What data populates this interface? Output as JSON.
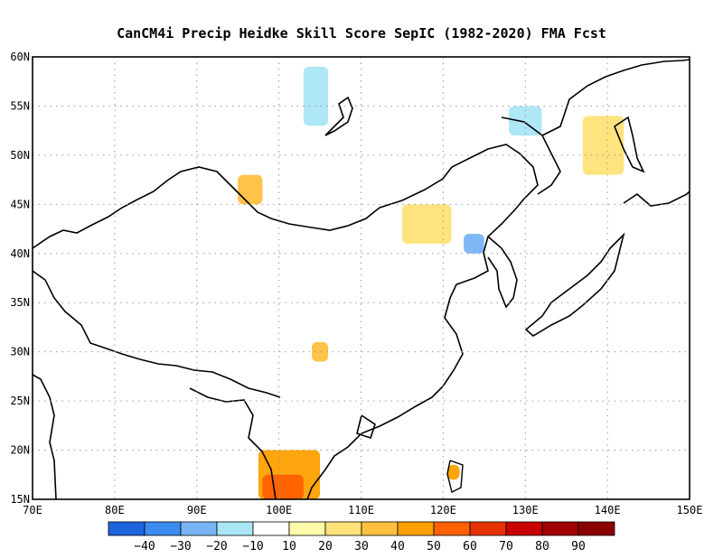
{
  "title": "CanCM4i Precip Heidke Skill Score SepIC (1982-2020) FMA Fcst",
  "map": {
    "lon_range": [
      70,
      150
    ],
    "lat_range": [
      15,
      60
    ],
    "lon_ticks": [
      {
        "value": 70,
        "label": "70E"
      },
      {
        "value": 80,
        "label": "80E"
      },
      {
        "value": 90,
        "label": "90E"
      },
      {
        "value": 100,
        "label": "100E"
      },
      {
        "value": 110,
        "label": "110E"
      },
      {
        "value": 120,
        "label": "120E"
      },
      {
        "value": 130,
        "label": "130E"
      },
      {
        "value": 140,
        "label": "140E"
      },
      {
        "value": 150,
        "label": "150E"
      }
    ],
    "lat_ticks": [
      {
        "value": 15,
        "label": "15N"
      },
      {
        "value": 20,
        "label": "20N"
      },
      {
        "value": 25,
        "label": "25N"
      },
      {
        "value": 30,
        "label": "30N"
      },
      {
        "value": 35,
        "label": "35N"
      },
      {
        "value": 40,
        "label": "40N"
      },
      {
        "value": 45,
        "label": "45N"
      },
      {
        "value": 50,
        "label": "50N"
      },
      {
        "value": 55,
        "label": "55N"
      },
      {
        "value": 60,
        "label": "60N"
      }
    ],
    "grid": "dotted"
  },
  "colorbar": {
    "levels": [
      -40,
      -30,
      -20,
      -10,
      10,
      20,
      30,
      40,
      50,
      60,
      70,
      80,
      90
    ],
    "labels": [
      "-40",
      "-30",
      "-20",
      "-10",
      "10",
      "20",
      "30",
      "40",
      "50",
      "60",
      "70",
      "80",
      "90"
    ],
    "colors": [
      "#1e64dc",
      "#3c8cf0",
      "#78b4f5",
      "#aae6f5",
      "#ffffff",
      "#fffaaa",
      "#ffe178",
      "#ffc040",
      "#ffa000",
      "#ff6000",
      "#e63200",
      "#c80000",
      "#a00000",
      "#8b0000"
    ]
  },
  "shaded_regions": [
    {
      "id": "bay-of-bengal-south",
      "lon": [
        97.5,
        105
      ],
      "lat": [
        15,
        20
      ],
      "class": 40
    },
    {
      "id": "malay-core",
      "lon": [
        98,
        103
      ],
      "lat": [
        15,
        17.5
      ],
      "class": 50
    },
    {
      "id": "taiwan",
      "lon": [
        120.5,
        122
      ],
      "lat": [
        17,
        18.5
      ],
      "class": 40
    },
    {
      "id": "central-china",
      "lon": [
        104,
        106
      ],
      "lat": [
        29,
        31
      ],
      "class": 30
    },
    {
      "id": "west-siberia",
      "lon": [
        95,
        98
      ],
      "lat": [
        45,
        48
      ],
      "class": 30
    },
    {
      "id": "n-china",
      "lon": [
        115,
        121
      ],
      "lat": [
        41,
        45
      ],
      "class": 20
    },
    {
      "id": "lake-baikal-north",
      "lon": [
        103,
        106
      ],
      "lat": [
        53,
        59
      ],
      "class": -20
    },
    {
      "id": "okhotsk",
      "lon": [
        128,
        132
      ],
      "lat": [
        52,
        55
      ],
      "class": -20
    },
    {
      "id": "korea-bay",
      "lon": [
        122.5,
        125
      ],
      "lat": [
        40,
        42
      ],
      "class": -30
    },
    {
      "id": "kamchatka-north",
      "lon": [
        137,
        142
      ],
      "lat": [
        48,
        54
      ],
      "class": 20
    }
  ]
}
